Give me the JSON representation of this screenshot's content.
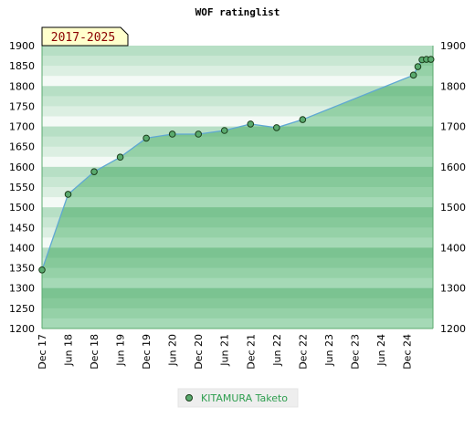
{
  "chart_data": {
    "type": "area",
    "title": "WOF ratinglist",
    "period_badge": "2017-2025",
    "categories": [
      "Dec 17",
      "Jun 18",
      "Dec 18",
      "Jun 19",
      "Dec 19",
      "Jun 20",
      "Dec 20",
      "Jun 21",
      "Dec 21",
      "Jun 22",
      "Dec 22",
      "Jun 23",
      "Dec 23",
      "Jun 24",
      "Dec 24"
    ],
    "y_ticks": [
      1200,
      1250,
      1300,
      1350,
      1400,
      1450,
      1500,
      1550,
      1600,
      1650,
      1700,
      1750,
      1800,
      1850,
      1900
    ],
    "y_ticks_right": [
      1200,
      1300,
      1400,
      1500,
      1600,
      1700,
      1800,
      1900
    ],
    "ylim": [
      1200,
      1900
    ],
    "xlim": [
      0,
      15
    ],
    "grid": true,
    "legend_position": "bottom-center",
    "series": [
      {
        "name": "KITAMURA Taketo",
        "color": "#5aaa6e",
        "line_color": "#5fa8d3",
        "points": [
          {
            "x": 0.0,
            "y": 1345
          },
          {
            "x": 1.0,
            "y": 1532
          },
          {
            "x": 2.0,
            "y": 1588
          },
          {
            "x": 3.0,
            "y": 1624
          },
          {
            "x": 4.0,
            "y": 1671
          },
          {
            "x": 5.0,
            "y": 1681
          },
          {
            "x": 6.0,
            "y": 1681
          },
          {
            "x": 7.0,
            "y": 1690
          },
          {
            "x": 8.0,
            "y": 1706
          },
          {
            "x": 9.0,
            "y": 1697
          },
          {
            "x": 10.0,
            "y": 1717
          },
          {
            "x": 14.25,
            "y": 1827
          },
          {
            "x": 14.42,
            "y": 1848
          },
          {
            "x": 14.58,
            "y": 1865
          },
          {
            "x": 14.75,
            "y": 1866
          },
          {
            "x": 14.92,
            "y": 1866
          }
        ]
      }
    ]
  }
}
